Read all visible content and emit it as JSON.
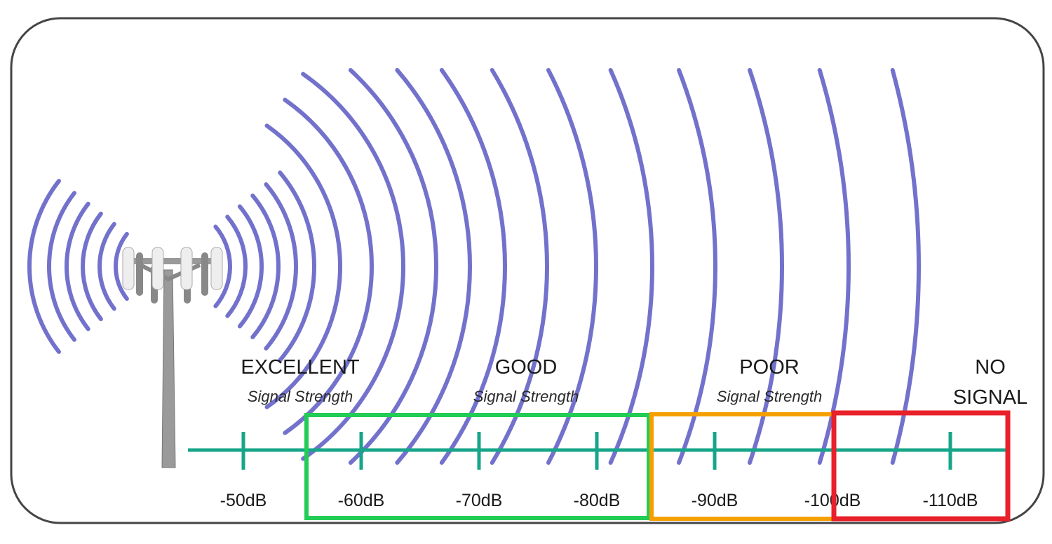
{
  "colors": {
    "wave": "#7272cc",
    "axis": "#17a589",
    "excellent_box": "#22cc55",
    "poor_box": "#f5a000",
    "no_signal_box": "#e8202a",
    "frame": "#444444",
    "tower": "#9a9a9a"
  },
  "icons": {
    "tower": "cell-tower-icon",
    "waves": "signal-wave-icon"
  },
  "categories": [
    {
      "title": "EXCELLENT",
      "subtitle": "Signal Strength"
    },
    {
      "title": "GOOD",
      "subtitle": "Signal Strength"
    },
    {
      "title": "POOR",
      "subtitle": "Signal Strength"
    },
    {
      "title_line1": "NO",
      "title_line2": "SIGNAL"
    }
  ],
  "scale": {
    "ticks": [
      "-50dB",
      "-60dB",
      "-70dB",
      "-80dB",
      "-90dB",
      "-100dB",
      "-110dB"
    ],
    "highlight_ranges": [
      {
        "color": "green",
        "from": "-55dB",
        "to": "-85dB"
      },
      {
        "color": "orange",
        "from": "-85dB",
        "to": "-100dB"
      },
      {
        "color": "red",
        "from": "-100dB",
        "to": "-115dB"
      }
    ]
  }
}
